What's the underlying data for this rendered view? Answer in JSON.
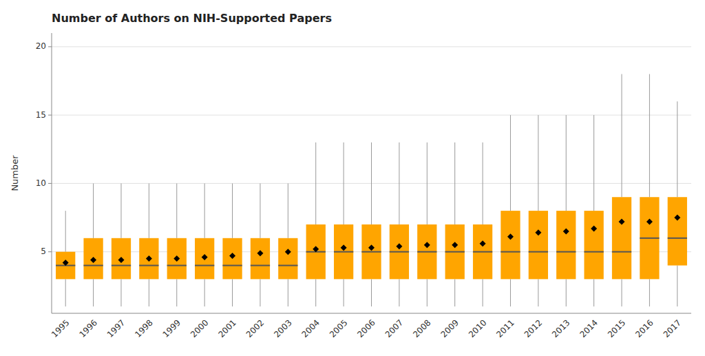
{
  "chart_data": {
    "type": "box",
    "title": "Number of Authors on NIH-Supported Papers",
    "y_label": "Number",
    "categories": [
      "1995",
      "1996",
      "1997",
      "1998",
      "1999",
      "2000",
      "2001",
      "2002",
      "2003",
      "2004",
      "2005",
      "2006",
      "2007",
      "2008",
      "2009",
      "2010",
      "2011",
      "2012",
      "2013",
      "2014",
      "2015",
      "2016",
      "2017"
    ],
    "boxes": [
      {
        "whislo": 1,
        "q1": 3,
        "med": 4,
        "q3": 5,
        "whishi": 8,
        "mean": 4.2
      },
      {
        "whislo": 1,
        "q1": 3,
        "med": 4,
        "q3": 6,
        "whishi": 10,
        "mean": 4.4
      },
      {
        "whislo": 1,
        "q1": 3,
        "med": 4,
        "q3": 6,
        "whishi": 10,
        "mean": 4.4
      },
      {
        "whislo": 1,
        "q1": 3,
        "med": 4,
        "q3": 6,
        "whishi": 10,
        "mean": 4.5
      },
      {
        "whislo": 1,
        "q1": 3,
        "med": 4,
        "q3": 6,
        "whishi": 10,
        "mean": 4.5
      },
      {
        "whislo": 1,
        "q1": 3,
        "med": 4,
        "q3": 6,
        "whishi": 10,
        "mean": 4.6
      },
      {
        "whislo": 1,
        "q1": 3,
        "med": 4,
        "q3": 6,
        "whishi": 10,
        "mean": 4.7
      },
      {
        "whislo": 1,
        "q1": 3,
        "med": 4,
        "q3": 6,
        "whishi": 10,
        "mean": 4.9
      },
      {
        "whislo": 1,
        "q1": 3,
        "med": 4,
        "q3": 6,
        "whishi": 10,
        "mean": 5.0
      },
      {
        "whislo": 1,
        "q1": 3,
        "med": 5,
        "q3": 7,
        "whishi": 13,
        "mean": 5.2
      },
      {
        "whislo": 1,
        "q1": 3,
        "med": 5,
        "q3": 7,
        "whishi": 13,
        "mean": 5.3
      },
      {
        "whislo": 1,
        "q1": 3,
        "med": 5,
        "q3": 7,
        "whishi": 13,
        "mean": 5.3
      },
      {
        "whislo": 1,
        "q1": 3,
        "med": 5,
        "q3": 7,
        "whishi": 13,
        "mean": 5.4
      },
      {
        "whislo": 1,
        "q1": 3,
        "med": 5,
        "q3": 7,
        "whishi": 13,
        "mean": 5.5
      },
      {
        "whislo": 1,
        "q1": 3,
        "med": 5,
        "q3": 7,
        "whishi": 13,
        "mean": 5.5
      },
      {
        "whislo": 1,
        "q1": 3,
        "med": 5,
        "q3": 7,
        "whishi": 13,
        "mean": 5.6
      },
      {
        "whislo": 1,
        "q1": 3,
        "med": 5,
        "q3": 8,
        "whishi": 15,
        "mean": 6.1
      },
      {
        "whislo": 1,
        "q1": 3,
        "med": 5,
        "q3": 8,
        "whishi": 15,
        "mean": 6.4
      },
      {
        "whislo": 1,
        "q1": 3,
        "med": 5,
        "q3": 8,
        "whishi": 15,
        "mean": 6.5
      },
      {
        "whislo": 1,
        "q1": 3,
        "med": 5,
        "q3": 8,
        "whishi": 15,
        "mean": 6.7
      },
      {
        "whislo": 1,
        "q1": 3,
        "med": 5,
        "q3": 9,
        "whishi": 18,
        "mean": 7.2
      },
      {
        "whislo": 1,
        "q1": 3,
        "med": 6,
        "q3": 9,
        "whishi": 18,
        "mean": 7.2
      },
      {
        "whislo": 1,
        "q1": 4,
        "med": 6,
        "q3": 9,
        "whishi": 16,
        "mean": 7.5
      }
    ],
    "color": "#FFA500",
    "marker": "diamond",
    "ylim": [
      0.5,
      21
    ],
    "yticks": [
      5,
      10,
      15,
      20
    ],
    "grid": true
  }
}
